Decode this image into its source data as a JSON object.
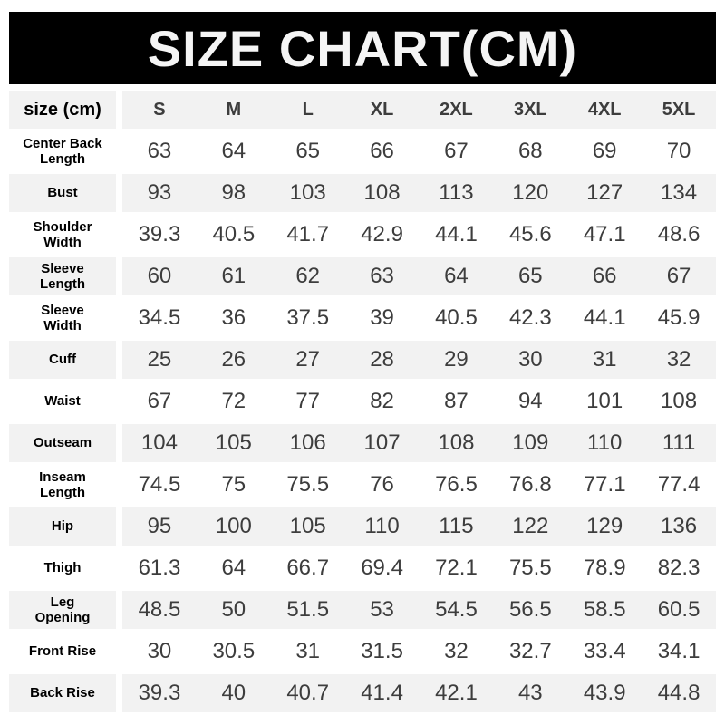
{
  "title": "SIZE CHART(CM)",
  "colors": {
    "banner_bg": "#000000",
    "banner_text": "#f5f5f5",
    "row_alt_bg": "#f2f2f2",
    "value_text": "#3d3d3d",
    "label_text": "#000000"
  },
  "chart_data": {
    "type": "table",
    "title": "SIZE CHART(CM)",
    "corner_label": "size (cm)",
    "columns": [
      "S",
      "M",
      "L",
      "XL",
      "2XL",
      "3XL",
      "4XL",
      "5XL"
    ],
    "rows": [
      {
        "label": "Center Back Length",
        "values": [
          63,
          64,
          65,
          66,
          67,
          68,
          69,
          70
        ]
      },
      {
        "label": "Bust",
        "values": [
          93,
          98,
          103,
          108,
          113,
          120,
          127,
          134
        ]
      },
      {
        "label": "Shoulder Width",
        "values": [
          39.3,
          40.5,
          41.7,
          42.9,
          44.1,
          45.6,
          47.1,
          48.6
        ]
      },
      {
        "label": "Sleeve Length",
        "values": [
          60,
          61,
          62,
          63,
          64,
          65,
          66,
          67
        ]
      },
      {
        "label": "Sleeve Width",
        "values": [
          34.5,
          36,
          37.5,
          39,
          40.5,
          42.3,
          44.1,
          45.9
        ]
      },
      {
        "label": "Cuff",
        "values": [
          25,
          26,
          27,
          28,
          29,
          30,
          31,
          32
        ]
      },
      {
        "label": "Waist",
        "values": [
          67,
          72,
          77,
          82,
          87,
          94,
          101,
          108
        ]
      },
      {
        "label": "Outseam",
        "values": [
          104,
          105,
          106,
          107,
          108,
          109,
          110,
          111
        ]
      },
      {
        "label": "Inseam Length",
        "values": [
          74.5,
          75,
          75.5,
          76,
          76.5,
          76.8,
          77.1,
          77.4
        ]
      },
      {
        "label": "Hip",
        "values": [
          95,
          100,
          105,
          110,
          115,
          122,
          129,
          136
        ]
      },
      {
        "label": "Thigh",
        "values": [
          61.3,
          64,
          66.7,
          69.4,
          72.1,
          75.5,
          78.9,
          82.3
        ]
      },
      {
        "label": "Leg Opening",
        "values": [
          48.5,
          50,
          51.5,
          53,
          54.5,
          56.5,
          58.5,
          60.5
        ]
      },
      {
        "label": "Front Rise",
        "values": [
          30,
          30.5,
          31,
          31.5,
          32,
          32.7,
          33.4,
          34.1
        ]
      },
      {
        "label": "Back Rise",
        "values": [
          39.3,
          40,
          40.7,
          41.4,
          42.1,
          43,
          43.9,
          44.8
        ]
      }
    ]
  }
}
